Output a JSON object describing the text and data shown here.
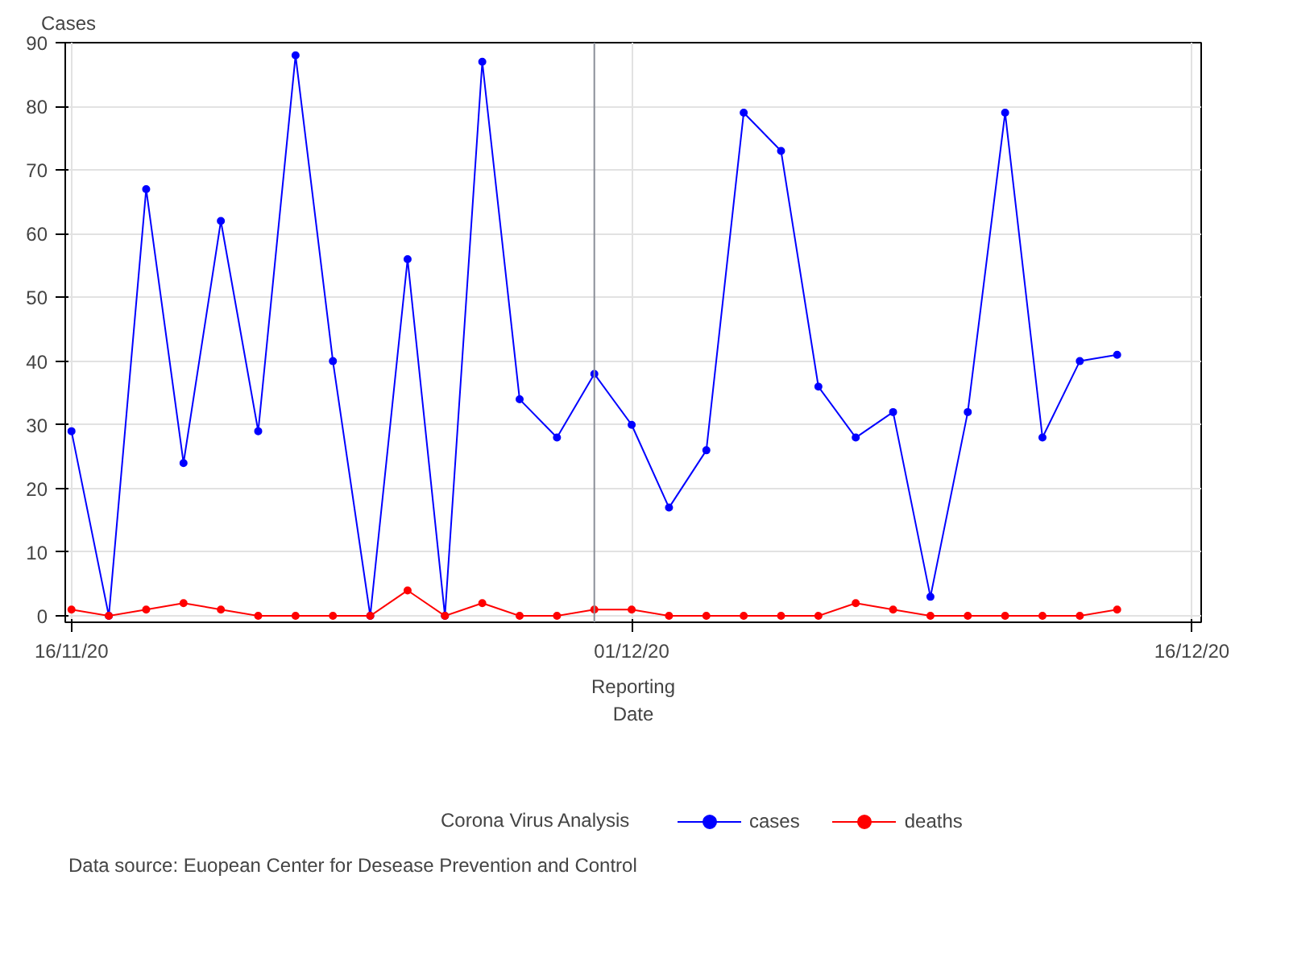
{
  "chart_data": {
    "type": "line",
    "xlabel": "Reporting Date",
    "ylabel": "Cases",
    "legend_title": "Corona Virus Analysis",
    "x": [
      "2020-11-16",
      "2020-11-17",
      "2020-11-18",
      "2020-11-19",
      "2020-11-20",
      "2020-11-21",
      "2020-11-22",
      "2020-11-23",
      "2020-11-24",
      "2020-11-25",
      "2020-11-26",
      "2020-11-27",
      "2020-11-28",
      "2020-11-29",
      "2020-11-30",
      "2020-12-01",
      "2020-12-02",
      "2020-12-03",
      "2020-12-04",
      "2020-12-05",
      "2020-12-06",
      "2020-12-07",
      "2020-12-08",
      "2020-12-09",
      "2020-12-10",
      "2020-12-11",
      "2020-12-12",
      "2020-12-13",
      "2020-12-14"
    ],
    "series": [
      {
        "name": "cases",
        "color": "#0000ff",
        "values": [
          29,
          0,
          67,
          24,
          62,
          29,
          88,
          40,
          0,
          56,
          0,
          87,
          34,
          28,
          38,
          30,
          17,
          26,
          79,
          73,
          36,
          28,
          32,
          3,
          32,
          79,
          28,
          40,
          41
        ]
      },
      {
        "name": "deaths",
        "color": "#ff0000",
        "values": [
          1,
          0,
          1,
          2,
          1,
          0,
          0,
          0,
          0,
          4,
          0,
          2,
          0,
          0,
          1,
          1,
          0,
          0,
          0,
          0,
          0,
          2,
          1,
          0,
          0,
          0,
          0,
          0,
          1
        ]
      }
    ],
    "xlim": [
      "2020-11-15T20:00",
      "2020-12-16T06:00"
    ],
    "ylim": [
      -1,
      90
    ],
    "xticks": [
      {
        "value": "2020-11-16",
        "label": "16/11/20"
      },
      {
        "value": "2020-12-01",
        "label": "01/12/20"
      },
      {
        "value": "2020-12-16",
        "label": "16/12/20"
      }
    ],
    "yticks": [
      0,
      10,
      20,
      30,
      40,
      50,
      60,
      70,
      80,
      90
    ],
    "ref_lines": [
      {
        "axis": "x",
        "value": "2020-11-30",
        "label": null,
        "color": "#8a8f99"
      }
    ],
    "annotations": [
      "Data source: Euopean Center for Desease Prevention and Control"
    ],
    "grid": true,
    "legend": "bottom",
    "marker": "circle",
    "line_style": "solid"
  }
}
